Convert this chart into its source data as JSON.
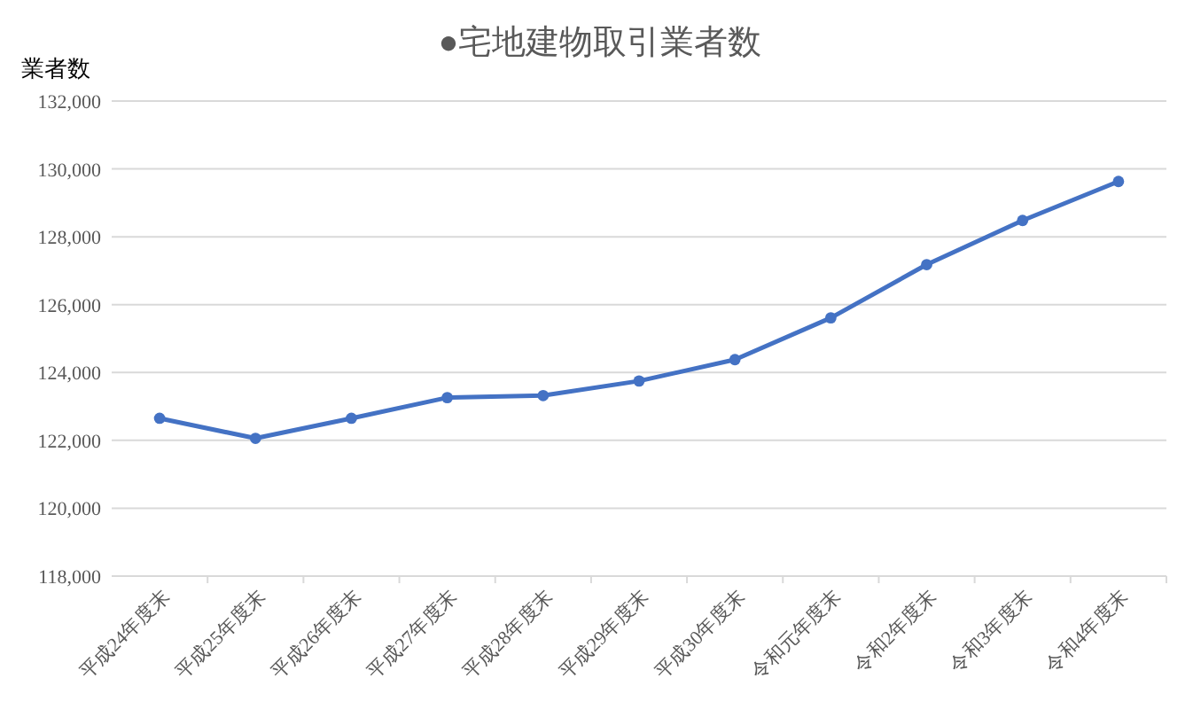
{
  "chart_data": {
    "type": "line",
    "title": "●宅地建物取引業者数",
    "ylabel": "業者数",
    "categories": [
      "平成24年度末",
      "平成25年度末",
      "平成26年度末",
      "平成27年度末",
      "平成28年度末",
      "平成29年度末",
      "平成30年度末",
      "令和元年度末",
      "令和2年度末",
      "令和3年度末",
      "令和4年度末"
    ],
    "series": [
      {
        "color": "#4472c4",
        "values": [
          122650,
          122060,
          122650,
          123260,
          123320,
          123750,
          124380,
          125610,
          127180,
          128480,
          129630
        ]
      }
    ],
    "ylim": [
      118000,
      132000
    ],
    "yticks": [
      {
        "value": 118000,
        "label": "118,000"
      },
      {
        "value": 120000,
        "label": "120,000"
      },
      {
        "value": 122000,
        "label": "122,000"
      },
      {
        "value": 124000,
        "label": "124,000"
      },
      {
        "value": 126000,
        "label": "126,000"
      },
      {
        "value": 128000,
        "label": "128,000"
      },
      {
        "value": 130000,
        "label": "130,000"
      },
      {
        "value": 132000,
        "label": "132,000"
      }
    ],
    "grid": "y",
    "marker": "circle",
    "line_style": "solid"
  }
}
